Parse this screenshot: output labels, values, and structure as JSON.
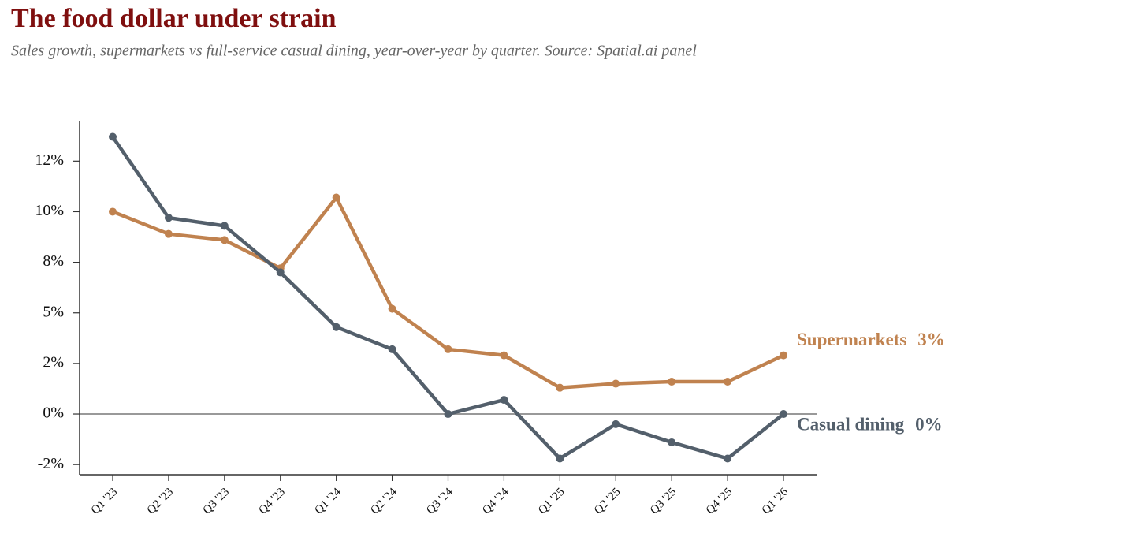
{
  "chart_data": {
    "type": "line",
    "title": "The food dollar under strain",
    "subtitle": "Sales growth, supermarkets vs full-service casual dining, year-over-year by quarter. Source: Spatial.ai panel",
    "categories": [
      "Q1 '23",
      "Q2 '23",
      "Q3 '23",
      "Q4 '23",
      "Q1 '24",
      "Q2 '24",
      "Q3 '24",
      "Q4 '24",
      "Q1 '25",
      "Q2 '25",
      "Q3 '25",
      "Q4 '25",
      "Q1 '26"
    ],
    "series": [
      {
        "name": "Supermarkets",
        "color": "#c0824f",
        "values": [
          10,
          8.9,
          8.6,
          7.2,
          10.7,
          5.2,
          3.2,
          2.9,
          1.3,
          1.5,
          1.6,
          1.6,
          2.9
        ],
        "value_labels": [
          null,
          null,
          null,
          null,
          null,
          null,
          null,
          null,
          null,
          null,
          null,
          null,
          "3%"
        ]
      },
      {
        "name": "Casual dining",
        "color": "#535f6b",
        "values": [
          13.7,
          9.7,
          9.3,
          7.0,
          4.3,
          3.2,
          0,
          0.7,
          -2.2,
          -0.5,
          -1.4,
          -2.2,
          0
        ],
        "value_labels": [
          null,
          null,
          null,
          null,
          null,
          null,
          null,
          null,
          null,
          null,
          null,
          null,
          "0%"
        ]
      }
    ],
    "ylim": [
      -3,
      14.5
    ],
    "yticks": [
      {
        "value": -2.5,
        "label": "-2%"
      },
      {
        "value": 0,
        "label": "0%"
      },
      {
        "value": 2.5,
        "label": "2%"
      },
      {
        "value": 5,
        "label": "5%"
      },
      {
        "value": 7.5,
        "label": "8%"
      },
      {
        "value": 10,
        "label": "10%"
      },
      {
        "value": 12.5,
        "label": "12%"
      }
    ],
    "reference_line": 0,
    "grid": false
  }
}
